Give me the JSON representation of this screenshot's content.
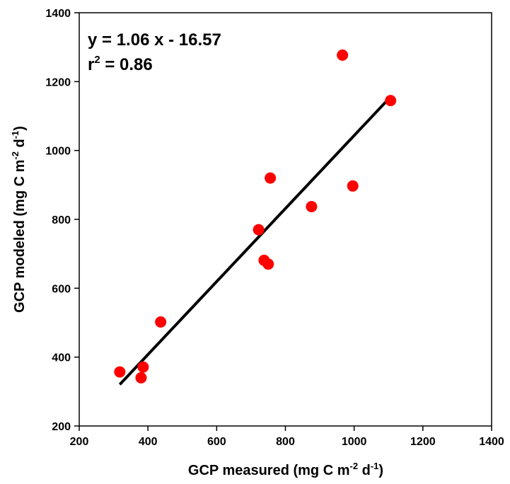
{
  "chart_data": {
    "type": "scatter",
    "title": "",
    "xlabel": {
      "main": "GCP measured (mg C m",
      "sup1": "-2",
      "mid": " d",
      "sup2": "-1",
      "end": ")"
    },
    "ylabel": {
      "main": "GCP modeled (mg C m",
      "sup1": "-2",
      "mid": " d",
      "sup2": "-1",
      "end": ")"
    },
    "xlim": [
      200,
      1400
    ],
    "ylim": [
      200,
      1400
    ],
    "xticks": [
      200,
      400,
      600,
      800,
      1000,
      1200,
      1400
    ],
    "yticks": [
      200,
      400,
      600,
      800,
      1000,
      1200,
      1400
    ],
    "xtick_labels": [
      "200",
      "400",
      "600",
      "800",
      "1000",
      "1200",
      "1400"
    ],
    "ytick_labels": [
      "200",
      "400",
      "600",
      "800",
      "1000",
      "1200",
      "1400"
    ],
    "grid": false,
    "points": [
      {
        "x": 318,
        "y": 357
      },
      {
        "x": 380,
        "y": 340
      },
      {
        "x": 386,
        "y": 371
      },
      {
        "x": 437,
        "y": 502
      },
      {
        "x": 722,
        "y": 770
      },
      {
        "x": 738,
        "y": 681
      },
      {
        "x": 750,
        "y": 670
      },
      {
        "x": 756,
        "y": 920
      },
      {
        "x": 876,
        "y": 837
      },
      {
        "x": 966,
        "y": 1277
      },
      {
        "x": 996,
        "y": 897
      },
      {
        "x": 1106,
        "y": 1145
      }
    ],
    "marker_color": "#ff0000",
    "fit_line": {
      "x": [
        318,
        1106
      ],
      "slope": 1.06,
      "intercept": -16.57,
      "color": "#000000"
    },
    "annotation": {
      "equation": "y = 1.06 x - 16.57",
      "r2_prefix": "r",
      "r2_sup": "2",
      "r2_suffix": " = 0.86"
    }
  }
}
